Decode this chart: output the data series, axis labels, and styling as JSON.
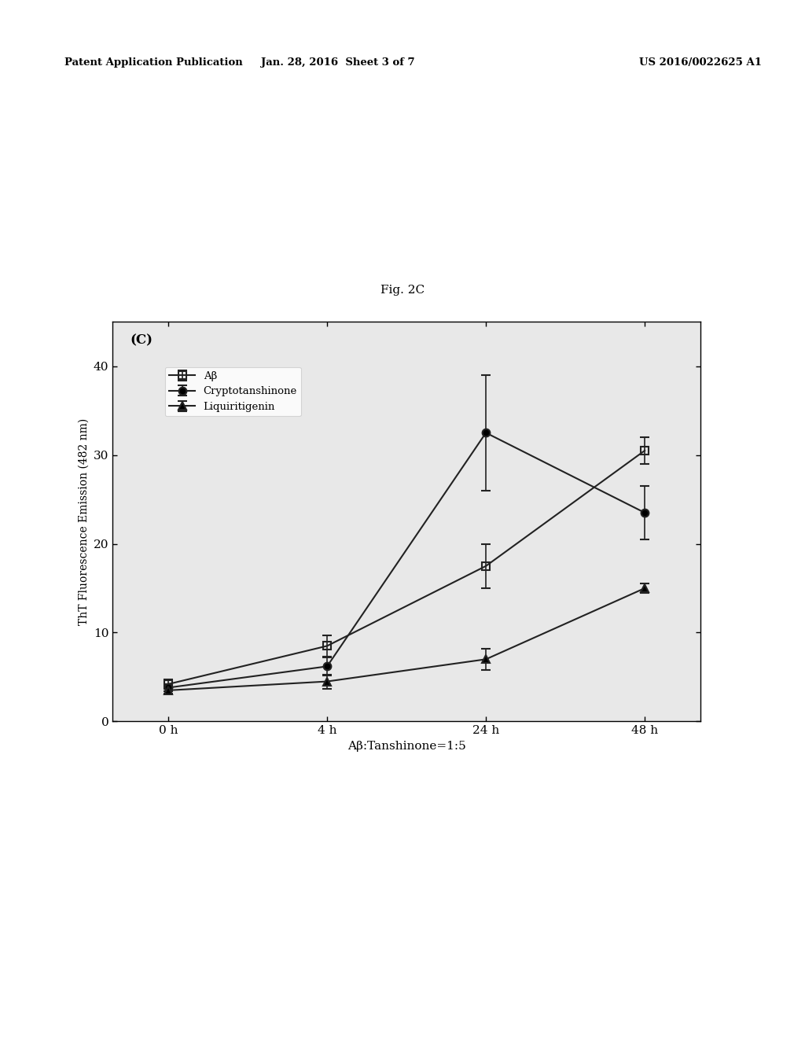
{
  "title": "Fig. 2C",
  "panel_label": "(C)",
  "xlabel": "Aβ:Tanshinone=1:5",
  "ylabel": "ThT Fluorescence Emission (482 nm)",
  "x_tick_labels": [
    "0 h",
    "4 h",
    "24 h",
    "48 h"
  ],
  "ylim": [
    0,
    45
  ],
  "yticks": [
    0,
    10,
    20,
    30,
    40
  ],
  "series": [
    {
      "label": "Aβ",
      "y": [
        4.2,
        8.5,
        17.5,
        30.5
      ],
      "yerr": [
        0.5,
        1.2,
        2.5,
        1.5
      ],
      "marker": "s",
      "markerfacecolor": "none"
    },
    {
      "label": "Cryptotanshinone",
      "y": [
        3.8,
        6.2,
        32.5,
        23.5
      ],
      "yerr": [
        0.4,
        1.0,
        6.5,
        3.0
      ],
      "marker": "o",
      "markerfacecolor": "black"
    },
    {
      "label": "Liquiritigenin",
      "y": [
        3.5,
        4.5,
        7.0,
        15.0
      ],
      "yerr": [
        0.4,
        0.8,
        1.2,
        0.5
      ],
      "marker": "^",
      "markerfacecolor": "black"
    }
  ],
  "fig_width": 10.24,
  "fig_height": 13.2,
  "background_color": "#ffffff",
  "header_left": "Patent Application Publication",
  "header_center": "Jan. 28, 2016  Sheet 3 of 7",
  "header_right": "US 2016/0022625 A1",
  "line_color": "#222222",
  "plot_bg": "#e8e8e8"
}
